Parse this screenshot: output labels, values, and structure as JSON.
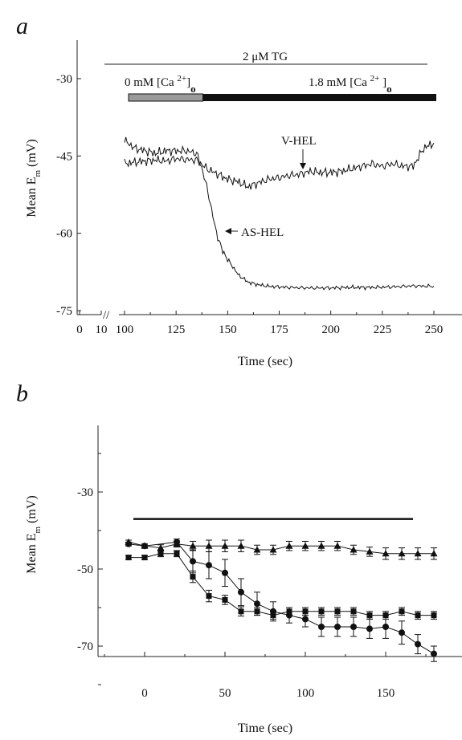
{
  "figure": {
    "panel_a": "a",
    "panel_b": "b"
  },
  "chart_data": [
    {
      "panel": "a",
      "type": "line",
      "xlabel": "Time (sec)",
      "ylabel_main": "Mean E",
      "ylabel_sub": "m",
      "ylabel_unit": " (mV)",
      "ylim": [
        -75,
        -30
      ],
      "xlim": [
        100,
        250
      ],
      "yticks": [
        "-30",
        "-45",
        "-60",
        "-75"
      ],
      "yticks_values": [
        -30,
        -45,
        -60,
        -75
      ],
      "xticks_break": [
        "0",
        "10"
      ],
      "xticks": [
        "100",
        "125",
        "150",
        "175",
        "200",
        "225",
        "250"
      ],
      "xticks_values": [
        100,
        125,
        150,
        175,
        200,
        225,
        250
      ],
      "annotations": {
        "tg_label": "2 μM TG",
        "ca0_label": "0 mM [Ca ",
        "ca0_sup": "2+",
        "ca0_sub": "o",
        "ca18_label": "1.8 mM [Ca ",
        "ca18_sup": "2+",
        "ca18_sub": "o",
        "vhel_label": "V-HEL",
        "ashel_label": "AS-HEL"
      },
      "protocol": {
        "tg_start": 100,
        "tg_end": 250,
        "ca0_start": 100,
        "ca0_end": 138,
        "ca18_start": 138,
        "ca18_end": 250
      },
      "series": [
        {
          "name": "V-HEL",
          "x": [
            100,
            105,
            110,
            115,
            120,
            125,
            130,
            135,
            140,
            145,
            150,
            155,
            160,
            165,
            170,
            175,
            180,
            185,
            190,
            195,
            200,
            205,
            210,
            215,
            220,
            225,
            230,
            235,
            240,
            245,
            250
          ],
          "y": [
            -46.5,
            -46.2,
            -46,
            -45.8,
            -46,
            -45.5,
            -45.7,
            -45.8,
            -47.5,
            -48.5,
            -49.5,
            -50,
            -51,
            -50.2,
            -49.5,
            -49.2,
            -48.8,
            -48.5,
            -48,
            -48.2,
            -48.2,
            -48,
            -47.5,
            -47,
            -46.5,
            -47,
            -46.5,
            -47,
            -47,
            -43.5,
            -42.5
          ]
        },
        {
          "name": "AS-HEL",
          "x": [
            100,
            105,
            110,
            115,
            120,
            125,
            130,
            135,
            138,
            141,
            144,
            147,
            150,
            155,
            160,
            165,
            170,
            175,
            180,
            190,
            200,
            210,
            220,
            230,
            240,
            250
          ],
          "y": [
            -42,
            -43.5,
            -44,
            -44.5,
            -44,
            -44,
            -44,
            -44.5,
            -48,
            -53,
            -59,
            -63,
            -65,
            -68,
            -69.5,
            -70,
            -70.3,
            -70.4,
            -70.5,
            -70.6,
            -70.6,
            -70.5,
            -70.5,
            -70.4,
            -70.2,
            -70.3
          ]
        }
      ]
    },
    {
      "panel": "b",
      "type": "line",
      "xlabel": "Time (sec)",
      "ylabel_main": "Mean E",
      "ylabel_sub": "m",
      "ylabel_unit": " (mV)",
      "ylim": [
        -80,
        -20
      ],
      "xlim": [
        -25,
        185
      ],
      "yticks": [
        "-30",
        "-50",
        "-70"
      ],
      "yticks_values": [
        -30,
        -50,
        -70
      ],
      "xticks": [
        "0",
        "50",
        "100",
        "150"
      ],
      "xticks_values": [
        0,
        50,
        100,
        150
      ],
      "bar": {
        "start": -7,
        "end": 167,
        "y": -37
      },
      "series": [
        {
          "marker": "triangle",
          "x": [
            -10,
            0,
            10,
            20,
            30,
            40,
            50,
            60,
            70,
            80,
            90,
            100,
            110,
            120,
            130,
            140,
            150,
            160,
            170,
            180
          ],
          "y": [
            -43,
            -44,
            -44.5,
            -43.5,
            -44,
            -44,
            -44,
            -44,
            -45,
            -45,
            -44,
            -44,
            -44,
            -44,
            -45,
            -45.5,
            -46,
            -46,
            -46,
            -46
          ],
          "err": [
            0.5,
            0.5,
            0.8,
            0.8,
            1.2,
            1.5,
            1.5,
            1.5,
            1.2,
            1.2,
            1.2,
            1.2,
            1.2,
            1.2,
            1.2,
            1.2,
            1.5,
            1.5,
            1.5,
            1.5
          ]
        },
        {
          "marker": "square",
          "x": [
            -10,
            0,
            10,
            20,
            30,
            40,
            50,
            60,
            70,
            80,
            90,
            100,
            110,
            120,
            130,
            140,
            150,
            160,
            170,
            180
          ],
          "y": [
            -47,
            -47,
            -46,
            -46,
            -52,
            -57,
            -58,
            -61,
            -61,
            -62,
            -61,
            -61,
            -61,
            -61,
            -61,
            -62,
            -62,
            -61,
            -62,
            -62
          ],
          "err": [
            0.5,
            0.5,
            0.8,
            0.8,
            1.5,
            1.5,
            1.2,
            1.2,
            1,
            1,
            1,
            1,
            1,
            1,
            1,
            1,
            1,
            1,
            1,
            1
          ]
        },
        {
          "marker": "circle",
          "x": [
            -10,
            0,
            20,
            30,
            40,
            50,
            60,
            70,
            80,
            90,
            100,
            110,
            120,
            130,
            140,
            150,
            160,
            170,
            180
          ],
          "y": [
            -43.5,
            -44,
            -43,
            -48,
            -49,
            -51,
            -56,
            -59,
            -61,
            -62,
            -63,
            -65,
            -65,
            -65,
            -65.5,
            -65,
            -66.5,
            -69.5,
            -72
          ],
          "err": [
            0.5,
            0.5,
            0.8,
            3,
            3.5,
            3.5,
            3.5,
            3,
            2.5,
            2,
            2,
            2.5,
            2.5,
            2.5,
            2.5,
            3,
            3,
            2.5,
            2
          ]
        }
      ]
    }
  ]
}
